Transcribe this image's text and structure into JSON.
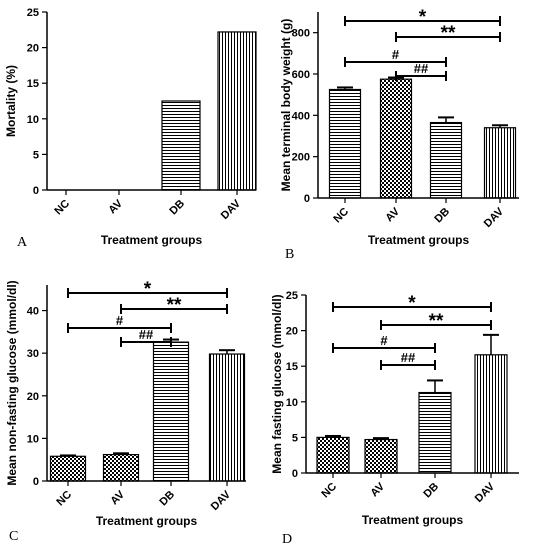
{
  "chart_data": [
    {
      "type": "bar",
      "panel": "A",
      "categories": [
        "NC",
        "AV",
        "DB",
        "DAV"
      ],
      "values": [
        0,
        0,
        12.5,
        22.2
      ],
      "patterns": [
        "none",
        "none",
        "horizontal",
        "vertical"
      ],
      "errors": [],
      "xlabel": "Treatment groups",
      "ylabel": "Mortality (%)",
      "ylim": [
        0,
        25
      ],
      "yticks": [
        0,
        5,
        10,
        15,
        20,
        25
      ],
      "significance": []
    },
    {
      "type": "bar",
      "panel": "B",
      "categories": [
        "NC",
        "AV",
        "DB",
        "DAV"
      ],
      "values": [
        525,
        575,
        365,
        340
      ],
      "patterns": [
        "horizontal",
        "checker",
        "horizontal",
        "vertical"
      ],
      "errors": [
        10,
        8,
        25,
        12
      ],
      "xlabel": "Treatment groups",
      "ylabel": "Mean terminal body weight (g)",
      "ylim": [
        0,
        900
      ],
      "yticks": [
        0,
        200,
        400,
        600,
        800
      ],
      "significance": [
        {
          "from": 0,
          "to": 3,
          "label": "*",
          "level": 1
        },
        {
          "from": 1,
          "to": 3,
          "label": "**",
          "level": 2
        },
        {
          "from": 0,
          "to": 2,
          "label": "#",
          "level": 3
        },
        {
          "from": 1,
          "to": 2,
          "label": "##",
          "level": 4
        }
      ]
    },
    {
      "type": "bar",
      "panel": "C",
      "categories": [
        "NC",
        "AV",
        "DB",
        "DAV"
      ],
      "values": [
        5.8,
        6.2,
        32.6,
        29.8
      ],
      "patterns": [
        "checker",
        "checker",
        "horizontal",
        "vertical"
      ],
      "errors": [
        0.2,
        0.3,
        0.6,
        0.9
      ],
      "xlabel": "Treatment groups",
      "ylabel": "Mean non-fasting glucose (mmol/dl)",
      "ylim": [
        0,
        46
      ],
      "yticks": [
        0,
        10,
        20,
        30,
        40
      ],
      "significance": [
        {
          "from": 0,
          "to": 3,
          "label": "*",
          "level": 1
        },
        {
          "from": 1,
          "to": 3,
          "label": "**",
          "level": 2
        },
        {
          "from": 0,
          "to": 2,
          "label": "#",
          "level": 3
        },
        {
          "from": 1,
          "to": 2,
          "label": "##",
          "level": 4
        }
      ]
    },
    {
      "type": "bar",
      "panel": "D",
      "categories": [
        "NC",
        "AV",
        "DB",
        "DAV"
      ],
      "values": [
        5.0,
        4.7,
        11.3,
        16.6
      ],
      "patterns": [
        "checker",
        "checker",
        "horizontal",
        "vertical"
      ],
      "errors": [
        0.2,
        0.2,
        1.7,
        2.8
      ],
      "xlabel": "Treatment groups",
      "ylabel": "Mean fasting glucose (mmol/dl)",
      "ylim": [
        0,
        25
      ],
      "yticks": [
        0,
        5,
        10,
        15,
        20,
        25
      ],
      "significance": [
        {
          "from": 0,
          "to": 3,
          "label": "*",
          "level": 1
        },
        {
          "from": 1,
          "to": 3,
          "label": "**",
          "level": 2
        },
        {
          "from": 0,
          "to": 2,
          "label": "#",
          "level": 3
        },
        {
          "from": 1,
          "to": 2,
          "label": "##",
          "level": 4
        }
      ]
    }
  ]
}
